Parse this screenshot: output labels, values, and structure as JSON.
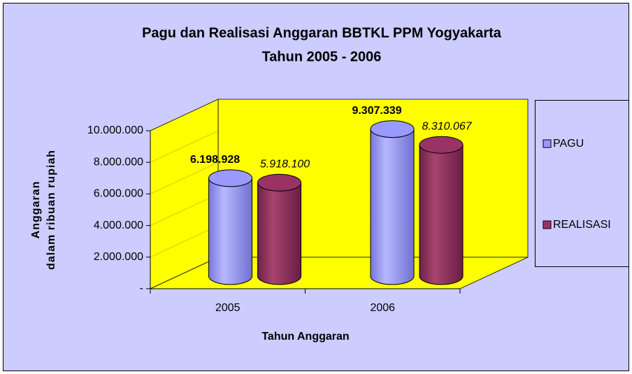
{
  "chart_data": {
    "type": "bar3d",
    "title": [
      "Pagu dan Realisasi Anggaran BBTKL PPM Yogyakarta",
      "Tahun 2005 - 2006"
    ],
    "ylabel": [
      "Anggaran",
      "dalam ribuan rupiah"
    ],
    "xlabel": "Tahun Anggaran",
    "categories": [
      "2005",
      "2006"
    ],
    "series": [
      {
        "name": "PAGU",
        "color": "#9999ff",
        "values": [
          6198928,
          9307339
        ],
        "value_labels": [
          "6.198.928",
          "9.307.339"
        ]
      },
      {
        "name": "REALISASI",
        "color": "#993366",
        "values": [
          5918100,
          8310067
        ],
        "value_labels": [
          "5.918.100",
          "8.310.067"
        ]
      }
    ],
    "ylim": [
      0,
      10000000
    ],
    "yticks": [
      {
        "value": 0,
        "label": "-"
      },
      {
        "value": 2000000,
        "label": "2.000.000"
      },
      {
        "value": 4000000,
        "label": "4.000.000"
      },
      {
        "value": 6000000,
        "label": "6.000.000"
      },
      {
        "value": 8000000,
        "label": "8.000.000"
      },
      {
        "value": 10000000,
        "label": "10.000.000"
      }
    ],
    "wall_color": "#ffff00",
    "legend": "right"
  }
}
